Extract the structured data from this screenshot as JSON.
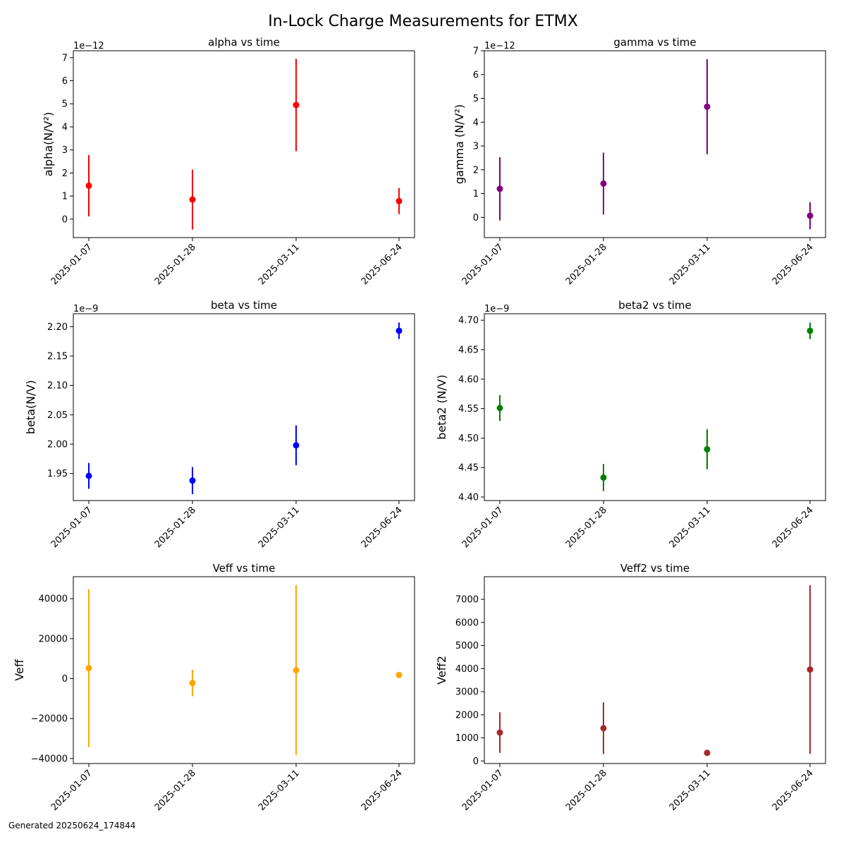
{
  "title": "In-Lock Charge Measurements for ETMX",
  "footer": "Generated 20250624_174844",
  "chart_data": [
    {
      "type": "scatter",
      "title": "alpha vs time",
      "ylabel": "alpha(N/V²)",
      "offset_text": "1e−12",
      "color": "#ff0000",
      "x": [
        "2025-01-07",
        "2025-01-28",
        "2025-03-11",
        "2025-06-24"
      ],
      "values": [
        1.45,
        0.85,
        4.95,
        0.78
      ],
      "errors": [
        1.33,
        1.3,
        2.0,
        0.57
      ],
      "ylim": [
        -0.8,
        7.3
      ],
      "yticks": [
        0,
        1,
        2,
        3,
        4,
        5,
        6,
        7
      ],
      "ytick_labels": [
        "0",
        "1",
        "2",
        "3",
        "4",
        "5",
        "6",
        "7"
      ]
    },
    {
      "type": "scatter",
      "title": "gamma vs time",
      "ylabel": "gamma (N/V²)",
      "offset_text": "1e−12",
      "color": "#800080",
      "x": [
        "2025-01-07",
        "2025-01-28",
        "2025-03-11",
        "2025-06-24"
      ],
      "values": [
        1.2,
        1.42,
        4.65,
        0.07
      ],
      "errors": [
        1.33,
        1.3,
        2.0,
        0.57
      ],
      "ylim": [
        -0.85,
        7.0
      ],
      "yticks": [
        0,
        1,
        2,
        3,
        4,
        5,
        6,
        7
      ],
      "ytick_labels": [
        "0",
        "1",
        "2",
        "3",
        "4",
        "5",
        "6",
        "7"
      ]
    },
    {
      "type": "scatter",
      "title": "beta vs time",
      "ylabel": "beta(N/V)",
      "offset_text": "1e−9",
      "color": "#0000ff",
      "x": [
        "2025-01-07",
        "2025-01-28",
        "2025-03-11",
        "2025-06-24"
      ],
      "values": [
        1.946,
        1.938,
        1.998,
        2.193
      ],
      "errors": [
        0.022,
        0.023,
        0.034,
        0.014
      ],
      "ylim": [
        1.904,
        2.222
      ],
      "yticks": [
        1.95,
        2.0,
        2.05,
        2.1,
        2.15,
        2.2
      ],
      "ytick_labels": [
        "1.95",
        "2.00",
        "2.05",
        "2.10",
        "2.15",
        "2.20"
      ]
    },
    {
      "type": "scatter",
      "title": "beta2 vs time",
      "ylabel": "beta2 (N/V)",
      "offset_text": "1e−9",
      "color": "#008000",
      "x": [
        "2025-01-07",
        "2025-01-28",
        "2025-03-11",
        "2025-06-24"
      ],
      "values": [
        4.551,
        4.433,
        4.481,
        4.682
      ],
      "errors": [
        0.022,
        0.023,
        0.034,
        0.014
      ],
      "ylim": [
        4.394,
        4.711
      ],
      "yticks": [
        4.4,
        4.45,
        4.5,
        4.55,
        4.6,
        4.65,
        4.7
      ],
      "ytick_labels": [
        "4.40",
        "4.45",
        "4.50",
        "4.55",
        "4.60",
        "4.65",
        "4.70"
      ]
    },
    {
      "type": "scatter",
      "title": "Veff vs time",
      "ylabel": "Veff",
      "offset_text": "",
      "color": "#ffa500",
      "x": [
        "2025-01-07",
        "2025-01-28",
        "2025-03-11",
        "2025-06-24"
      ],
      "values": [
        5200,
        -2200,
        4200,
        1800
      ],
      "errors": [
        39500,
        6600,
        42500,
        1200
      ],
      "ylim": [
        -42500,
        51000
      ],
      "yticks": [
        -40000,
        -20000,
        0,
        20000,
        40000
      ],
      "ytick_labels": [
        "−40000",
        "−20000",
        "0",
        "20000",
        "40000"
      ]
    },
    {
      "type": "scatter",
      "title": "Veff2 vs time",
      "ylabel": "Veff2",
      "offset_text": "",
      "color": "#a52a2a",
      "x": [
        "2025-01-07",
        "2025-01-28",
        "2025-03-11",
        "2025-06-24"
      ],
      "values": [
        1230,
        1420,
        350,
        3960
      ],
      "errors": [
        880,
        1120,
        0,
        3650
      ],
      "ylim": [
        -110,
        7980
      ],
      "yticks": [
        0,
        1000,
        2000,
        3000,
        4000,
        5000,
        6000,
        7000
      ],
      "ytick_labels": [
        "0",
        "1000",
        "2000",
        "3000",
        "4000",
        "5000",
        "6000",
        "7000"
      ]
    }
  ]
}
